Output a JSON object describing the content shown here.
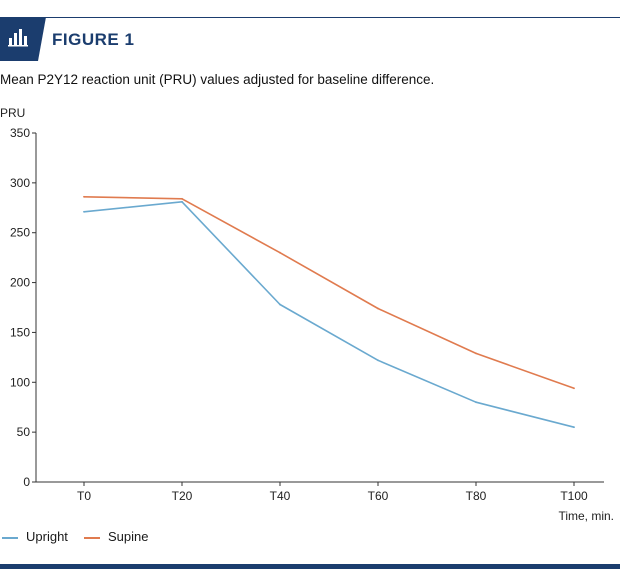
{
  "header": {
    "figure_label": "FIGURE 1",
    "icon": "bar-chart-icon"
  },
  "colors": {
    "brand": "#1b3d6e",
    "upright": "#6aa9cf",
    "supine": "#e07b4f",
    "axis": "#333333"
  },
  "chart_data": {
    "type": "line",
    "title": "Mean P2Y12 reaction unit (PRU) values adjusted for baseline difference.",
    "ylabel": "PRU",
    "xlabel": "Time, min.",
    "categories": [
      "T0",
      "T20",
      "T40",
      "T60",
      "T80",
      "T100"
    ],
    "ylim": [
      0,
      350
    ],
    "yticks": [
      0,
      50,
      100,
      150,
      200,
      250,
      300,
      350
    ],
    "grid": false,
    "legend_position": "bottom-left",
    "series": [
      {
        "name": "Upright",
        "color": "#6aa9cf",
        "values": [
          271,
          281,
          178,
          122,
          80,
          55
        ]
      },
      {
        "name": "Supine",
        "color": "#e07b4f",
        "values": [
          286,
          284,
          230,
          174,
          129,
          94
        ]
      }
    ]
  }
}
